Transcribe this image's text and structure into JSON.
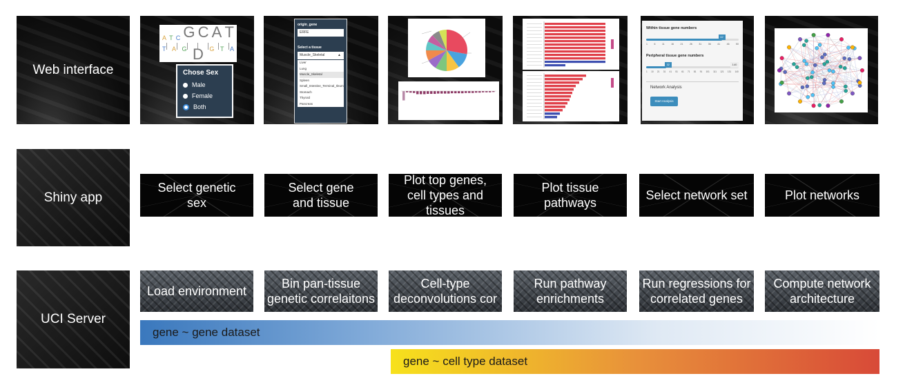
{
  "rows": {
    "web": {
      "label": "Web interface"
    },
    "shiny": {
      "label": "Shiny app",
      "steps": [
        "Select genetic sex",
        "Select gene and tissue",
        "Plot top genes, cell types and tissues",
        "Plot tissue pathways",
        "Select network set",
        "Plot networks"
      ]
    },
    "server": {
      "label": "UCI Server",
      "steps": [
        "Load environment",
        "Bin pan-tissue genetic correlaitons",
        "Cell-type deconvolutions cor",
        "Run pathway enrichments",
        "Run regressions for correlated genes",
        "Compute network architecture"
      ]
    }
  },
  "bars": {
    "gene_gene": "gene ~ gene dataset",
    "gene_cell": "gene ~ cell type dataset"
  },
  "screens": {
    "sex": {
      "dna_top": [
        "A",
        "T",
        "C",
        "G",
        "C",
        "A",
        "T"
      ],
      "dna_bottom": [
        "T",
        "A",
        "G",
        "D",
        "G",
        "T",
        "A"
      ],
      "panel_title": "Chose Sex",
      "options": [
        "Male",
        "Female",
        "Both"
      ],
      "selected": "Both"
    },
    "gene_tissue": {
      "gene_label": "origin_gene",
      "gene_value": "ERFE",
      "tissue_label": "Select a tissue",
      "tissue_value": "Muscle_Skeletal",
      "tissue_options": [
        "Liver",
        "Lung",
        "Muscle_Skeletal",
        "Spleen",
        "Small_Intestine_Terminal_Ileum",
        "Stomach",
        "Thyroid",
        "Pancreas"
      ]
    },
    "network_set": {
      "within_label": "Within tissue gene numbers",
      "within_ticks": [
        "1",
        "6",
        "11",
        "16",
        "21",
        "26",
        "31",
        "36",
        "41",
        "46",
        "50"
      ],
      "within_value": "42",
      "peripheral_label": "Peripheral tissue gene numbers",
      "peripheral_ticks": [
        "1",
        "10",
        "21",
        "31",
        "41",
        "51",
        "61",
        "71",
        "81",
        "91",
        "101",
        "111",
        "121",
        "131",
        "140"
      ],
      "peripheral_value": "32",
      "peripheral_max": "140",
      "section_label": "Network Analysis",
      "button_label": "Start Analysis"
    }
  },
  "colors": {
    "bar_blue": "#3a78bd",
    "bar_yellow": "#f7e11c",
    "bar_orange": "#e8913a",
    "bar_red": "#d84a38",
    "pie": [
      "#e84a5f",
      "#4aa3df",
      "#f6c443",
      "#7dc67e",
      "#9b6cc9",
      "#f08a4b",
      "#5fc6c6",
      "#c45fa0",
      "#8a8a8a",
      "#d4e157"
    ],
    "pathway_red": "#e0404a",
    "pathway_blue": "#3d4fb0",
    "deconv_bar": "#8e3a66"
  }
}
